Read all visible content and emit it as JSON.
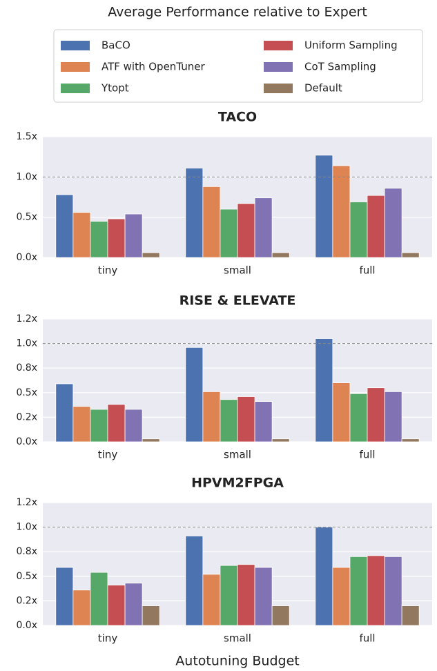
{
  "title": "Average Performance relative to Expert",
  "xlabel": "Autotuning Budget",
  "chart_data": [
    {
      "type": "bar",
      "title": "TACO",
      "categories": [
        "tiny",
        "small",
        "full"
      ],
      "series": [
        {
          "name": "BaCO",
          "color": "#4c72b0",
          "values": [
            0.78,
            1.11,
            1.27
          ]
        },
        {
          "name": "ATF with OpenTuner",
          "color": "#dd8452",
          "values": [
            0.56,
            0.88,
            1.14
          ]
        },
        {
          "name": "Ytopt",
          "color": "#55a868",
          "values": [
            0.45,
            0.6,
            0.69
          ]
        },
        {
          "name": "Uniform Sampling",
          "color": "#c44e52",
          "values": [
            0.48,
            0.67,
            0.77
          ]
        },
        {
          "name": "CoT Sampling",
          "color": "#8172b3",
          "values": [
            0.54,
            0.74,
            0.86
          ]
        },
        {
          "name": "Default",
          "color": "#937860",
          "values": [
            0.06,
            0.06,
            0.06
          ]
        }
      ],
      "ylim": [
        0,
        1.5
      ],
      "yticks": [
        {
          "value": 0,
          "label": "0.0x"
        },
        {
          "value": 0.5,
          "label": "0.5x"
        },
        {
          "value": 1,
          "label": "1.0x"
        },
        {
          "value": 1.5,
          "label": "1.5x"
        }
      ],
      "reference_line": 1,
      "grid": true
    },
    {
      "type": "bar",
      "title": "RISE & ELEVATE",
      "categories": [
        "tiny",
        "small",
        "full"
      ],
      "series": [
        {
          "values": [
            0.59,
            0.96,
            1.05
          ]
        },
        {
          "values": [
            0.36,
            0.51,
            0.6
          ]
        },
        {
          "values": [
            0.33,
            0.43,
            0.49
          ]
        },
        {
          "values": [
            0.38,
            0.46,
            0.55
          ]
        },
        {
          "values": [
            0.33,
            0.41,
            0.51
          ]
        },
        {
          "values": [
            0.03,
            0.03,
            0.03
          ]
        }
      ],
      "ylim": [
        0,
        1.25
      ],
      "yticks": [
        {
          "value": 0,
          "label": "0.0x"
        },
        {
          "value": 0.25,
          "label": "0.2x"
        },
        {
          "value": 0.5,
          "label": "0.5x"
        },
        {
          "value": 0.75,
          "label": "0.8x"
        },
        {
          "value": 1,
          "label": "1.0x"
        },
        {
          "value": 1.25,
          "label": "1.2x"
        }
      ],
      "reference_line": 1,
      "grid": true
    },
    {
      "type": "bar",
      "title": "HPVM2FPGA",
      "categories": [
        "tiny",
        "small",
        "full"
      ],
      "series": [
        {
          "values": [
            0.59,
            0.91,
            1.0
          ]
        },
        {
          "values": [
            0.36,
            0.52,
            0.59
          ]
        },
        {
          "values": [
            0.54,
            0.61,
            0.7
          ]
        },
        {
          "values": [
            0.41,
            0.62,
            0.71
          ]
        },
        {
          "values": [
            0.43,
            0.59,
            0.7
          ]
        },
        {
          "values": [
            0.2,
            0.2,
            0.2
          ]
        }
      ],
      "ylim": [
        0,
        1.25
      ],
      "yticks": [
        {
          "value": 0,
          "label": "0.0x"
        },
        {
          "value": 0.25,
          "label": "0.2x"
        },
        {
          "value": 0.5,
          "label": "0.5x"
        },
        {
          "value": 0.75,
          "label": "0.8x"
        },
        {
          "value": 1,
          "label": "1.0x"
        },
        {
          "value": 1.25,
          "label": "1.2x"
        }
      ],
      "reference_line": 1,
      "grid": true
    }
  ]
}
